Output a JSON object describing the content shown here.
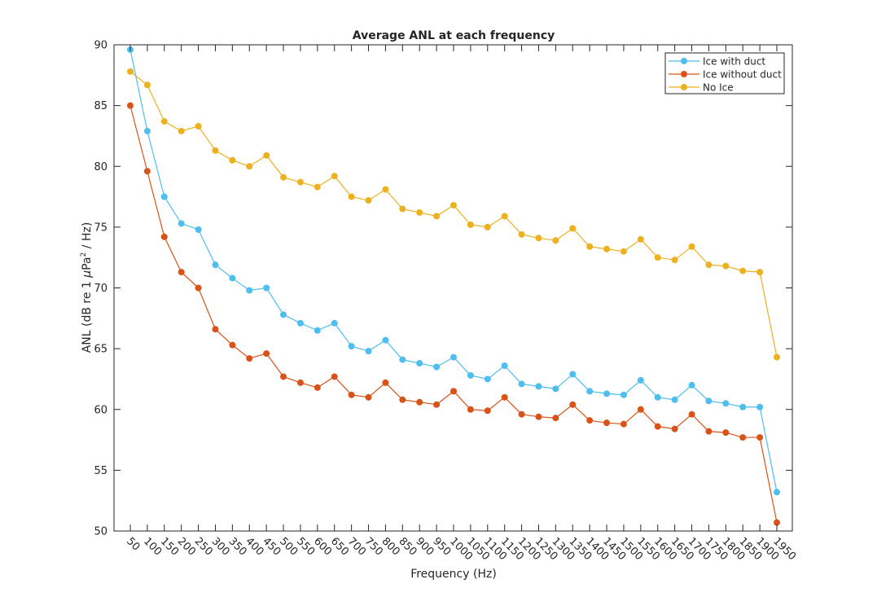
{
  "chart_data": {
    "type": "line",
    "title": "Average ANL at each frequency",
    "xlabel": "Frequency (Hz)",
    "ylabel_parts": {
      "prefix": "ANL (dB re 1 ",
      "mu": "μ",
      "pa": "Pa",
      "sup": "2",
      "suffix": " / Hz)"
    },
    "x": [
      50,
      100,
      150,
      200,
      250,
      300,
      350,
      400,
      450,
      500,
      550,
      600,
      650,
      700,
      750,
      800,
      850,
      900,
      950,
      1000,
      1050,
      1100,
      1150,
      1200,
      1250,
      1300,
      1350,
      1400,
      1450,
      1500,
      1550,
      1600,
      1650,
      1700,
      1750,
      1800,
      1850,
      1900,
      1950
    ],
    "ylim": [
      50,
      90
    ],
    "yticks": [
      50,
      55,
      60,
      65,
      70,
      75,
      80,
      85,
      90
    ],
    "grid": false,
    "legend_position": "top-right",
    "series": [
      {
        "name": "Ice with duct",
        "color": "#4DBEEE",
        "values": [
          89.6,
          82.9,
          77.5,
          75.3,
          74.8,
          71.9,
          70.8,
          69.8,
          70.0,
          67.8,
          67.1,
          66.5,
          67.1,
          65.2,
          64.8,
          65.7,
          64.1,
          63.8,
          63.5,
          64.3,
          62.8,
          62.5,
          63.6,
          62.1,
          61.9,
          61.7,
          62.9,
          61.5,
          61.3,
          61.2,
          62.4,
          61.0,
          60.8,
          62.0,
          60.7,
          60.5,
          60.2,
          60.2,
          53.2
        ]
      },
      {
        "name": "Ice without duct",
        "color": "#D95319",
        "values": [
          85.0,
          79.6,
          74.2,
          71.3,
          70.0,
          66.6,
          65.3,
          64.2,
          64.6,
          62.7,
          62.2,
          61.8,
          62.7,
          61.2,
          61.0,
          62.2,
          60.8,
          60.6,
          60.4,
          61.5,
          60.0,
          59.9,
          61.0,
          59.6,
          59.4,
          59.3,
          60.4,
          59.1,
          58.9,
          58.8,
          60.0,
          58.6,
          58.4,
          59.6,
          58.2,
          58.1,
          57.7,
          57.7,
          50.7
        ]
      },
      {
        "name": "No Ice",
        "color": "#EDB120",
        "values": [
          87.8,
          86.7,
          83.7,
          82.9,
          83.3,
          81.3,
          80.5,
          80.0,
          80.9,
          79.1,
          78.7,
          78.3,
          79.2,
          77.5,
          77.2,
          78.1,
          76.5,
          76.2,
          75.9,
          76.8,
          75.2,
          75.0,
          75.9,
          74.4,
          74.1,
          73.9,
          74.9,
          73.4,
          73.2,
          73.0,
          74.0,
          72.5,
          72.3,
          73.4,
          71.9,
          71.8,
          71.4,
          71.3,
          64.3
        ]
      }
    ]
  }
}
